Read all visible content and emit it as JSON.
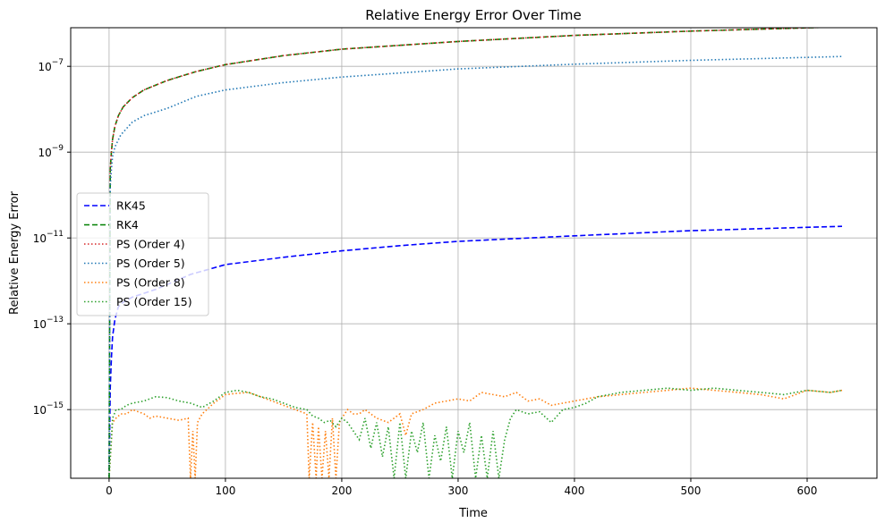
{
  "chart_data": {
    "type": "line",
    "title": "Relative Energy Error Over Time",
    "xlabel": "Time",
    "ylabel": "Relative Energy Error",
    "y_scale": "log",
    "xlim": [
      -33,
      660
    ],
    "ylim_log10": [
      -16.6,
      -6.1
    ],
    "x_ticks": [
      0,
      100,
      200,
      300,
      400,
      500,
      600
    ],
    "x_tick_labels": [
      "0",
      "100",
      "200",
      "300",
      "400",
      "500",
      "600"
    ],
    "y_ticks_log10": [
      -15,
      -13,
      -11,
      -9,
      -7
    ],
    "y_tick_labels": [
      "10",
      "10",
      "10",
      "10",
      "10"
    ],
    "y_tick_exponents": [
      "−15",
      "−13",
      "−11",
      "−9",
      "−7"
    ],
    "grid": true,
    "legend_position": "center-left",
    "series": [
      {
        "name": "RK45",
        "color": "#0000ff",
        "dash": "dashed",
        "x": [
          0,
          1,
          2,
          3,
          5,
          8,
          12,
          20,
          40,
          70,
          100,
          150,
          200,
          250,
          300,
          400,
          500,
          630
        ],
        "log10_y": [
          -16.6,
          -14.5,
          -13.8,
          -13.3,
          -12.9,
          -12.6,
          -12.5,
          -12.38,
          -12.2,
          -11.85,
          -11.62,
          -11.45,
          -11.3,
          -11.18,
          -11.08,
          -10.95,
          -10.83,
          -10.73
        ]
      },
      {
        "name": "RK4",
        "color": "#008000",
        "dash": "dashed",
        "x": [
          0,
          1,
          2,
          3,
          5,
          8,
          12,
          20,
          30,
          50,
          75,
          100,
          150,
          200,
          300,
          400,
          500,
          630
        ],
        "log10_y": [
          -16.6,
          -9.4,
          -9.0,
          -8.7,
          -8.4,
          -8.15,
          -7.95,
          -7.73,
          -7.55,
          -7.33,
          -7.12,
          -6.96,
          -6.75,
          -6.6,
          -6.42,
          -6.28,
          -6.18,
          -6.08
        ]
      },
      {
        "name": "PS (Order 4)",
        "color": "#d62728",
        "dash": "dotted",
        "x": [
          0,
          1,
          2,
          3,
          5,
          8,
          12,
          20,
          30,
          50,
          75,
          100,
          150,
          200,
          300,
          400,
          500,
          630
        ],
        "log10_y": [
          -16.6,
          -9.4,
          -9.0,
          -8.7,
          -8.4,
          -8.15,
          -7.95,
          -7.73,
          -7.55,
          -7.33,
          -7.12,
          -6.96,
          -6.75,
          -6.6,
          -6.42,
          -6.28,
          -6.18,
          -6.08
        ]
      },
      {
        "name": "PS (Order 5)",
        "color": "#1f77b4",
        "dash": "dotted",
        "x": [
          0,
          1,
          2,
          3,
          5,
          10,
          20,
          30,
          50,
          75,
          100,
          150,
          200,
          300,
          400,
          500,
          630
        ],
        "log10_y": [
          -16.6,
          -9.8,
          -9.4,
          -9.1,
          -8.88,
          -8.6,
          -8.3,
          -8.15,
          -7.98,
          -7.7,
          -7.55,
          -7.38,
          -7.25,
          -7.06,
          -6.95,
          -6.86,
          -6.77
        ]
      },
      {
        "name": "PS (Order 8)",
        "color": "#ff7f0e",
        "dash": "dotted",
        "x": [
          0,
          3,
          6,
          10,
          15,
          20,
          25,
          30,
          35,
          40,
          50,
          60,
          68,
          70,
          72,
          74,
          76,
          80,
          90,
          100,
          110,
          120,
          130,
          140,
          150,
          160,
          170,
          172,
          175,
          178,
          180,
          183,
          186,
          189,
          192,
          195,
          198,
          200,
          205,
          210,
          215,
          220,
          230,
          240,
          250,
          255,
          260,
          270,
          280,
          290,
          300,
          310,
          320,
          330,
          340,
          350,
          360,
          370,
          380,
          390,
          400,
          420,
          440,
          460,
          480,
          500,
          520,
          540,
          560,
          580,
          600,
          620,
          630
        ],
        "log10_y": [
          -16.6,
          -15.3,
          -15.2,
          -15.1,
          -15.1,
          -15.0,
          -15.05,
          -15.1,
          -15.2,
          -15.15,
          -15.2,
          -15.25,
          -15.2,
          -16.6,
          -15.5,
          -16.6,
          -15.3,
          -15.1,
          -14.85,
          -14.65,
          -14.62,
          -14.6,
          -14.7,
          -14.8,
          -14.9,
          -15.0,
          -15.1,
          -16.6,
          -15.3,
          -16.6,
          -15.4,
          -16.6,
          -15.5,
          -16.6,
          -15.2,
          -16.6,
          -15.3,
          -15.2,
          -15.0,
          -15.1,
          -15.1,
          -15.0,
          -15.2,
          -15.3,
          -15.1,
          -15.6,
          -15.1,
          -15.0,
          -14.85,
          -14.8,
          -14.75,
          -14.8,
          -14.6,
          -14.65,
          -14.7,
          -14.6,
          -14.8,
          -14.75,
          -14.9,
          -14.85,
          -14.8,
          -14.7,
          -14.65,
          -14.6,
          -14.55,
          -14.5,
          -14.55,
          -14.6,
          -14.65,
          -14.75,
          -14.55,
          -14.6,
          -14.55
        ]
      },
      {
        "name": "PS (Order 15)",
        "color": "#2ca02c",
        "dash": "dotted",
        "x": [
          0,
          3,
          6,
          10,
          15,
          20,
          30,
          40,
          50,
          60,
          70,
          80,
          90,
          100,
          110,
          120,
          130,
          140,
          150,
          160,
          170,
          175,
          180,
          185,
          190,
          195,
          200,
          205,
          210,
          215,
          220,
          225,
          230,
          235,
          240,
          245,
          250,
          255,
          260,
          265,
          270,
          275,
          280,
          285,
          290,
          295,
          300,
          305,
          310,
          315,
          320,
          325,
          330,
          335,
          340,
          345,
          350,
          360,
          370,
          380,
          390,
          400,
          410,
          420,
          440,
          460,
          480,
          500,
          520,
          540,
          560,
          580,
          600,
          620,
          630
        ],
        "log10_y": [
          -16.6,
          -15.2,
          -15.0,
          -15.0,
          -14.9,
          -14.85,
          -14.8,
          -14.7,
          -14.72,
          -14.8,
          -14.85,
          -14.95,
          -14.8,
          -14.6,
          -14.55,
          -14.6,
          -14.7,
          -14.75,
          -14.85,
          -14.95,
          -15.0,
          -15.15,
          -15.2,
          -15.3,
          -15.25,
          -15.4,
          -15.2,
          -15.3,
          -15.5,
          -15.7,
          -15.2,
          -15.9,
          -15.3,
          -16.1,
          -15.4,
          -16.6,
          -15.3,
          -16.6,
          -15.5,
          -16.0,
          -15.3,
          -16.6,
          -15.6,
          -16.2,
          -15.4,
          -16.6,
          -15.5,
          -16.0,
          -15.3,
          -16.6,
          -15.6,
          -16.6,
          -15.5,
          -16.6,
          -15.7,
          -15.2,
          -15.0,
          -15.1,
          -15.05,
          -15.3,
          -15.0,
          -14.95,
          -14.85,
          -14.7,
          -14.6,
          -14.55,
          -14.5,
          -14.55,
          -14.5,
          -14.55,
          -14.6,
          -14.65,
          -14.55,
          -14.6,
          -14.55
        ]
      }
    ]
  }
}
